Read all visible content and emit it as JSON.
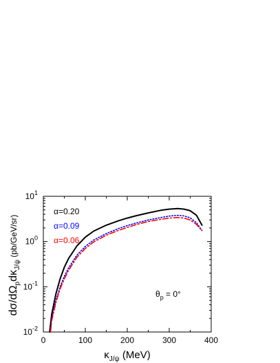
{
  "chart_data": {
    "type": "line",
    "xlabel_main": "κ",
    "xlabel_sub": "J/ψ",
    "xlabel_unit": " (MeV)",
    "ylabel_main": "dσ/dΩ",
    "ylabel_sub1": "p",
    "ylabel_mid": "dκ",
    "ylabel_sub2": "J/ψ",
    "ylabel_unit": " (pb/GeV/sr)",
    "xlim": [
      0,
      400
    ],
    "ylim": [
      0.01,
      10
    ],
    "y_scale": "log",
    "x_ticks": [
      0,
      100,
      200,
      300,
      400
    ],
    "y_ticks": [
      {
        "value": 0.01,
        "base": "10",
        "exp": "-2"
      },
      {
        "value": 0.1,
        "base": "10",
        "exp": "-1"
      },
      {
        "value": 1,
        "base": "10",
        "exp": "0"
      },
      {
        "value": 10,
        "base": "10",
        "exp": "1"
      }
    ],
    "annotation": {
      "text": "θ",
      "sub": "p",
      "rest": " = 0°"
    },
    "legend_placement": "top-left",
    "series": [
      {
        "name": "α=0.20",
        "color": "#000000",
        "dash": "solid",
        "x": [
          15,
          20,
          30,
          40,
          50,
          60,
          80,
          100,
          120,
          150,
          180,
          200,
          220,
          250,
          280,
          300,
          320,
          335,
          350,
          365,
          372,
          378
        ],
        "y": [
          0.01,
          0.025,
          0.07,
          0.15,
          0.27,
          0.42,
          0.8,
          1.25,
          1.7,
          2.3,
          2.9,
          3.3,
          3.7,
          4.3,
          4.9,
          5.2,
          5.35,
          5.2,
          4.8,
          3.8,
          2.9,
          2.3
        ]
      },
      {
        "name": "α=0.09",
        "color": "#0000ff",
        "dash": "dot",
        "x": [
          17,
          20,
          30,
          40,
          50,
          60,
          80,
          100,
          120,
          150,
          180,
          200,
          220,
          250,
          280,
          300,
          320,
          335,
          350,
          365,
          372,
          378
        ],
        "y": [
          0.01,
          0.02,
          0.05,
          0.1,
          0.17,
          0.26,
          0.5,
          0.78,
          1.08,
          1.5,
          1.95,
          2.25,
          2.55,
          3.0,
          3.4,
          3.65,
          3.8,
          3.7,
          3.35,
          2.6,
          2.1,
          1.75
        ]
      },
      {
        "name": "α=0.06",
        "color": "#ff0000",
        "dash": "dashdot",
        "x": [
          17,
          20,
          30,
          40,
          50,
          60,
          80,
          100,
          120,
          150,
          180,
          200,
          220,
          250,
          280,
          300,
          320,
          335,
          350,
          365,
          372,
          378
        ],
        "y": [
          0.01,
          0.018,
          0.045,
          0.09,
          0.15,
          0.23,
          0.45,
          0.7,
          0.98,
          1.38,
          1.78,
          2.05,
          2.35,
          2.78,
          3.1,
          3.3,
          3.4,
          3.3,
          3.0,
          2.4,
          2.0,
          1.75
        ]
      }
    ]
  }
}
